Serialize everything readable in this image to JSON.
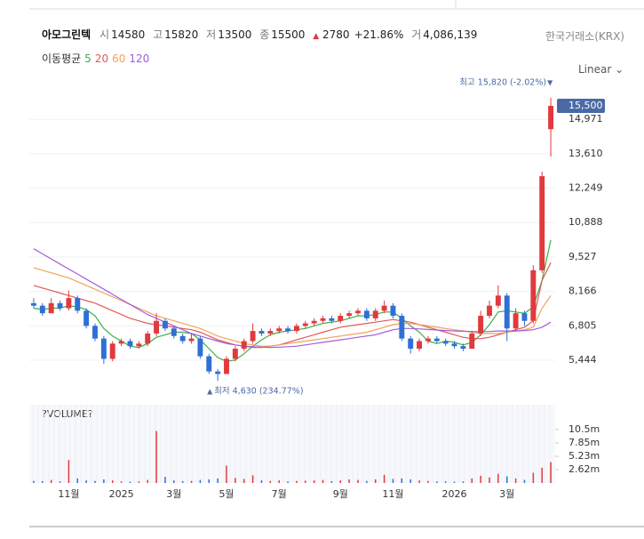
{
  "header": {
    "name": "아모그린텍",
    "open_label": "시",
    "open": 14580,
    "high_label": "고",
    "high": 15820,
    "low_label": "저",
    "low": 13500,
    "close_label": "종",
    "close": 15500,
    "change": 2780,
    "change_pct": "+21.86%",
    "volume_label": "거",
    "volume": "4,086,139",
    "exchange": "한국거래소(KRX)",
    "ma_label": "이동평균",
    "scale": "Linear"
  },
  "chart_data": [
    {
      "type": "candlestick",
      "categories": [
        null,
        null,
        null,
        null,
        "11월",
        null,
        null,
        null,
        null,
        null,
        "2025",
        null,
        null,
        null,
        null,
        null,
        "3월",
        null,
        null,
        null,
        null,
        null,
        "5월",
        null,
        null,
        null,
        null,
        null,
        "7월",
        null,
        null,
        null,
        null,
        null,
        null,
        "9월",
        null,
        null,
        null,
        null,
        null,
        "11월",
        null,
        null,
        null,
        null,
        null,
        null,
        "2026",
        null,
        null,
        null,
        null,
        null,
        "3월",
        null,
        null,
        null,
        null,
        null
      ],
      "open": [
        7700,
        7600,
        7300,
        7700,
        7500,
        7900,
        7400,
        6800,
        6300,
        5500,
        6100,
        6200,
        6000,
        6100,
        6500,
        7000,
        6700,
        6400,
        6200,
        6300,
        5600,
        5000,
        4900,
        5500,
        5900,
        6200,
        6600,
        6500,
        6600,
        6700,
        6600,
        6800,
        6900,
        7000,
        7100,
        7000,
        7200,
        7300,
        7400,
        7100,
        7400,
        7600,
        7200,
        6300,
        5900,
        6200,
        6300,
        6200,
        6100,
        6000,
        5900,
        6500,
        7200,
        7600,
        8000,
        6700,
        7300,
        7000,
        9000,
        14580
      ],
      "high": [
        7900,
        7700,
        7900,
        7800,
        8200,
        8000,
        7500,
        6900,
        6400,
        6200,
        6300,
        6300,
        6200,
        6600,
        7300,
        7100,
        6800,
        6500,
        6500,
        6400,
        5700,
        5100,
        5600,
        6000,
        6300,
        6900,
        6700,
        6700,
        6800,
        6800,
        6900,
        7000,
        7100,
        7200,
        7200,
        7300,
        7400,
        7500,
        7500,
        7500,
        7800,
        7700,
        7300,
        6400,
        6300,
        6400,
        6400,
        6300,
        6200,
        6100,
        6600,
        7400,
        7800,
        8400,
        8100,
        7500,
        7400,
        9200,
        12900,
        15820
      ],
      "low": [
        7500,
        7200,
        7300,
        7400,
        7400,
        7300,
        6700,
        6200,
        5300,
        5400,
        6000,
        5900,
        5900,
        6000,
        6400,
        6600,
        6300,
        6100,
        6100,
        5500,
        4900,
        4630,
        4900,
        5400,
        5800,
        6100,
        6400,
        6400,
        6500,
        6500,
        6500,
        6700,
        6800,
        6900,
        6900,
        6900,
        7100,
        7200,
        7000,
        7000,
        7300,
        7100,
        6200,
        5700,
        5800,
        6100,
        6100,
        6000,
        5900,
        5800,
        5900,
        6400,
        7100,
        7500,
        6200,
        6600,
        6800,
        6900,
        8900,
        13500
      ],
      "close": [
        7600,
        7300,
        7700,
        7500,
        7900,
        7400,
        6800,
        6300,
        5500,
        6100,
        6200,
        6000,
        6100,
        6500,
        7000,
        6700,
        6400,
        6200,
        6300,
        5600,
        5000,
        4900,
        5500,
        5900,
        6200,
        6600,
        6500,
        6600,
        6700,
        6600,
        6800,
        6900,
        7000,
        7100,
        7000,
        7200,
        7300,
        7400,
        7100,
        7400,
        7600,
        7200,
        6300,
        5900,
        6200,
        6300,
        6200,
        6100,
        6000,
        5900,
        6500,
        7200,
        7600,
        8000,
        6700,
        7300,
        7000,
        9000,
        12720,
        15500
      ],
      "up_color": "#e0393e",
      "down_color": "#2f6fd6",
      "series": [
        {
          "name": "5",
          "color": "#3fae49",
          "values": [
            7500,
            7450,
            7500,
            7500,
            7600,
            7550,
            7450,
            7200,
            6700,
            6400,
            6200,
            6000,
            5950,
            6100,
            6350,
            6450,
            6550,
            6550,
            6500,
            6250,
            5900,
            5550,
            5400,
            5450,
            5700,
            6000,
            6250,
            6450,
            6550,
            6600,
            6650,
            6700,
            6800,
            6900,
            6950,
            7000,
            7100,
            7200,
            7200,
            7250,
            7350,
            7350,
            7100,
            6800,
            6550,
            6200,
            6100,
            6200,
            6150,
            6050,
            6150,
            6450,
            6850,
            7350,
            7400,
            7350,
            7300,
            7550,
            8600,
            10200
          ]
        },
        {
          "name": "20",
          "color": "#e05a5a",
          "values": [
            8400,
            8300,
            8200,
            8100,
            8000,
            7900,
            7800,
            7700,
            7550,
            7400,
            7250,
            7100,
            7000,
            6900,
            6850,
            6800,
            6750,
            6700,
            6650,
            6550,
            6400,
            6250,
            6150,
            6050,
            6000,
            5950,
            5950,
            6000,
            6050,
            6150,
            6250,
            6350,
            6450,
            6550,
            6650,
            6750,
            6800,
            6850,
            6900,
            6950,
            7000,
            7050,
            7000,
            6950,
            6850,
            6750,
            6650,
            6550,
            6450,
            6350,
            6300,
            6300,
            6350,
            6450,
            6550,
            6650,
            6750,
            7000,
            8600,
            9300
          ]
        },
        {
          "name": "60",
          "color": "#f0a35a",
          "values": [
            9100,
            9000,
            8900,
            8800,
            8700,
            8550,
            8400,
            8250,
            8100,
            7950,
            7800,
            7650,
            7500,
            7350,
            7200,
            7100,
            7000,
            6900,
            6800,
            6700,
            6550,
            6400,
            6300,
            6200,
            6100,
            6050,
            6000,
            6000,
            6050,
            6100,
            6150,
            6200,
            6250,
            6300,
            6350,
            6400,
            6450,
            6500,
            6550,
            6650,
            6750,
            6850,
            6900,
            6900,
            6850,
            6800,
            6750,
            6700,
            6650,
            6600,
            6550,
            6500,
            6500,
            6500,
            6550,
            6600,
            6650,
            6750,
            7500,
            8000
          ]
        },
        {
          "name": "120",
          "color": "#a25ce0",
          "values": [
            9850,
            9650,
            9450,
            9250,
            9050,
            8850,
            8650,
            8450,
            8250,
            8050,
            7850,
            7650,
            7450,
            7250,
            7100,
            6950,
            6800,
            6650,
            6500,
            6400,
            6300,
            6200,
            6100,
            6050,
            6000,
            5980,
            5960,
            5950,
            5960,
            5980,
            6000,
            6050,
            6100,
            6150,
            6200,
            6250,
            6300,
            6350,
            6400,
            6450,
            6550,
            6650,
            6700,
            6700,
            6680,
            6660,
            6640,
            6620,
            6600,
            6590,
            6580,
            6570,
            6580,
            6600,
            6600,
            6600,
            6620,
            6650,
            6750,
            6950
          ]
        }
      ],
      "ylim": [
        4037,
        16170
      ],
      "yticks": [
        {
          "value": 5444,
          "label": "5,444"
        },
        {
          "value": 6805,
          "label": "6,805"
        },
        {
          "value": 8166,
          "label": "8,166"
        },
        {
          "value": 9527,
          "label": "9,527"
        },
        {
          "value": 10888,
          "label": "10,888"
        },
        {
          "value": 12249,
          "label": "12,249"
        },
        {
          "value": 13610,
          "label": "13,610"
        },
        {
          "value": 14971,
          "label": "14,971"
        }
      ],
      "last_price": {
        "value": 15500,
        "label": "15,500"
      },
      "max_label": "최고 15,820 (-2.02%)",
      "min_label": "최저 4,630 (234.77%)"
    },
    {
      "type": "bar",
      "title": "?VOLUME?",
      "values": [
        400000,
        350000,
        600000,
        300000,
        4500000,
        900000,
        500000,
        400000,
        700000,
        500000,
        300000,
        250000,
        300000,
        600000,
        10200000,
        1200000,
        500000,
        350000,
        400000,
        600000,
        700000,
        900000,
        3400000,
        1000000,
        800000,
        1500000,
        500000,
        400000,
        500000,
        300000,
        400000,
        450000,
        500000,
        600000,
        350000,
        500000,
        700000,
        600000,
        400000,
        700000,
        1600000,
        800000,
        900000,
        700000,
        500000,
        400000,
        300000,
        300000,
        250000,
        300000,
        900000,
        1400000,
        1100000,
        1800000,
        1300000,
        900000,
        600000,
        2000000,
        3000000,
        4086139
      ],
      "ylim": [
        0,
        15370000
      ],
      "yticks": [
        {
          "value": 2620000,
          "label": "2.62m"
        },
        {
          "value": 5230000,
          "label": "5.23m"
        },
        {
          "value": 7850000,
          "label": "7.85m"
        },
        {
          "value": 10500000,
          "label": "10.5m"
        }
      ]
    }
  ]
}
